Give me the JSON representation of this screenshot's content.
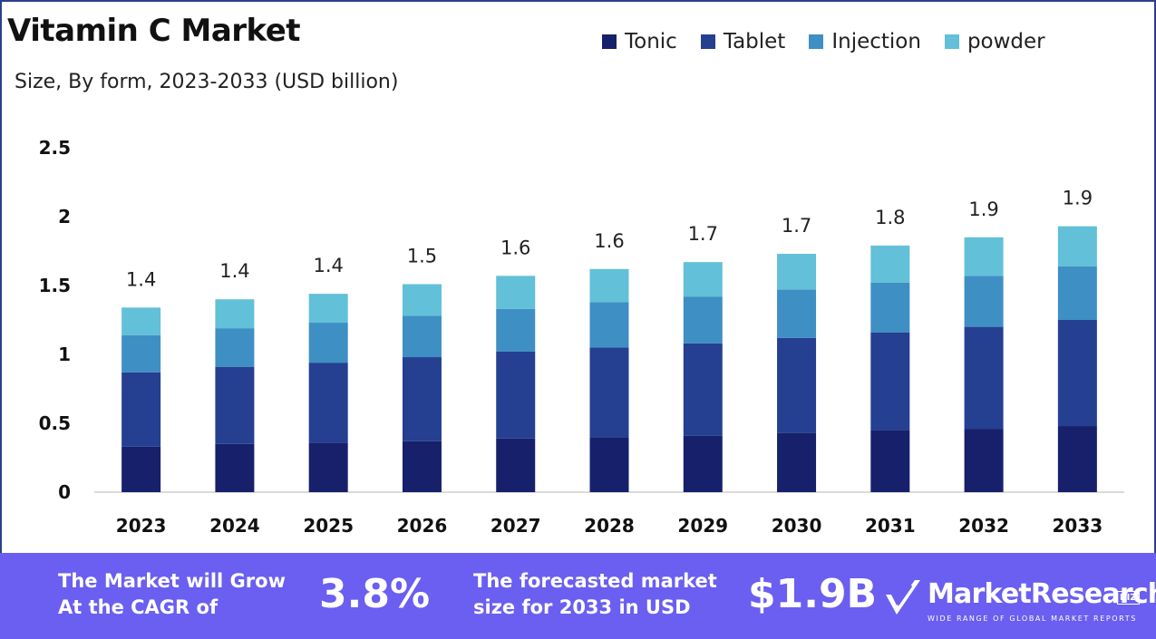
{
  "title": "Vitamin C Market",
  "subtitle": "Size, By form, 2023-2033 (USD billion)",
  "colors": {
    "tonic": "#16206b",
    "tablet": "#253f91",
    "injection": "#3e8fc4",
    "powder": "#62c0d8",
    "footer_bg": "#6a5ff0",
    "frame": "#2c3e8c"
  },
  "chart_data": {
    "type": "bar",
    "stacked": true,
    "categories": [
      "2023",
      "2024",
      "2025",
      "2026",
      "2027",
      "2028",
      "2029",
      "2030",
      "2031",
      "2032",
      "2033"
    ],
    "series": [
      {
        "name": "Tonic",
        "values": [
          0.33,
          0.35,
          0.36,
          0.37,
          0.39,
          0.4,
          0.41,
          0.43,
          0.45,
          0.46,
          0.48
        ]
      },
      {
        "name": "Tablet",
        "values": [
          0.54,
          0.56,
          0.58,
          0.61,
          0.63,
          0.65,
          0.67,
          0.69,
          0.71,
          0.74,
          0.77
        ]
      },
      {
        "name": "Injection",
        "values": [
          0.27,
          0.28,
          0.29,
          0.3,
          0.31,
          0.33,
          0.34,
          0.35,
          0.36,
          0.37,
          0.39
        ]
      },
      {
        "name": "powder",
        "values": [
          0.2,
          0.21,
          0.21,
          0.23,
          0.24,
          0.24,
          0.25,
          0.26,
          0.27,
          0.28,
          0.29
        ]
      }
    ],
    "totals": [
      "1.4",
      "1.4",
      "1.4",
      "1.5",
      "1.6",
      "1.6",
      "1.7",
      "1.7",
      "1.8",
      "1.9",
      "1.9"
    ],
    "y_ticks": [
      "0",
      "0.5",
      "1",
      "1.5",
      "2",
      "2.5"
    ],
    "ylim": [
      0,
      2.5
    ],
    "xlabel": "",
    "ylabel": "",
    "grid": false,
    "legend_position": "top"
  },
  "footer": {
    "cagr_text_line1": "The Market will Grow",
    "cagr_text_line2": "At the CAGR of",
    "cagr_value": "3.8%",
    "forecast_text_line1": "The forecasted market",
    "forecast_text_line2": "size for 2033 in USD",
    "forecast_value": "$1.9B",
    "brand_name": "MarketResearch",
    "brand_suffix": "BIZ",
    "brand_tagline": "WIDE RANGE OF GLOBAL MARKET REPORTS"
  }
}
